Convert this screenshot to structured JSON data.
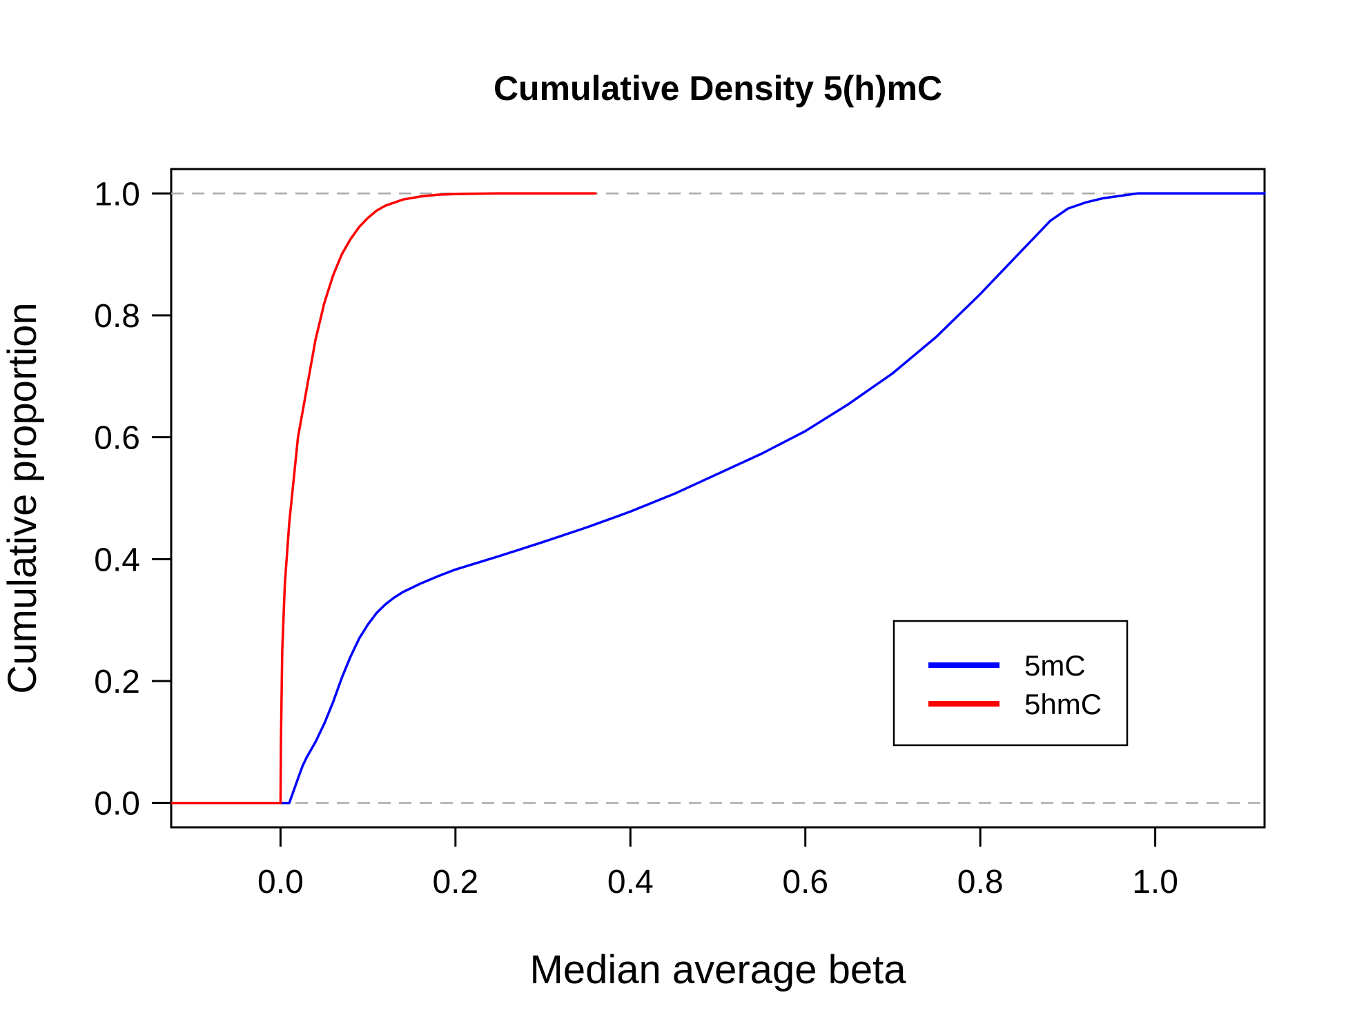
{
  "chart_data": {
    "type": "line",
    "title": "Cumulative Density 5(h)mC",
    "xlabel": "Median average beta",
    "ylabel": "Cumulative proportion",
    "xlim": [
      -0.125,
      1.125
    ],
    "ylim": [
      -0.04,
      1.04
    ],
    "x_ticks": [
      0.0,
      0.2,
      0.4,
      0.6,
      0.8,
      1.0
    ],
    "x_tick_labels": [
      "0.0",
      "0.2",
      "0.4",
      "0.6",
      "0.8",
      "1.0"
    ],
    "y_ticks": [
      0.0,
      0.2,
      0.4,
      0.6,
      0.8,
      1.0
    ],
    "y_tick_labels": [
      "0.0",
      "0.2",
      "0.4",
      "0.6",
      "0.8",
      "1.0"
    ],
    "reference_lines": [
      0.0,
      1.0
    ],
    "reference_line_color": "#aaaaaa",
    "grid": false,
    "legend_position": "bottom-right",
    "series": [
      {
        "name": "5mC",
        "color": "#0000ff",
        "x": [
          -0.125,
          0.0,
          0.01,
          0.015,
          0.02,
          0.025,
          0.03,
          0.04,
          0.05,
          0.06,
          0.07,
          0.08,
          0.09,
          0.1,
          0.11,
          0.12,
          0.13,
          0.14,
          0.15,
          0.16,
          0.18,
          0.2,
          0.25,
          0.3,
          0.35,
          0.4,
          0.45,
          0.5,
          0.55,
          0.6,
          0.65,
          0.7,
          0.75,
          0.8,
          0.82,
          0.84,
          0.86,
          0.87,
          0.88,
          0.9,
          0.92,
          0.94,
          0.96,
          0.98,
          1.0,
          1.125
        ],
        "y": [
          0.0,
          0.0,
          0.0,
          0.02,
          0.04,
          0.06,
          0.075,
          0.1,
          0.13,
          0.165,
          0.205,
          0.24,
          0.27,
          0.293,
          0.312,
          0.326,
          0.337,
          0.346,
          0.353,
          0.36,
          0.372,
          0.383,
          0.405,
          0.428,
          0.452,
          0.478,
          0.507,
          0.54,
          0.573,
          0.61,
          0.655,
          0.705,
          0.765,
          0.835,
          0.865,
          0.895,
          0.925,
          0.94,
          0.955,
          0.975,
          0.985,
          0.992,
          0.996,
          1.0,
          1.0,
          1.0
        ]
      },
      {
        "name": "5hmC",
        "color": "#ff0000",
        "x": [
          -0.125,
          0.0,
          0.0005,
          0.002,
          0.005,
          0.01,
          0.015,
          0.02,
          0.025,
          0.03,
          0.04,
          0.05,
          0.06,
          0.07,
          0.08,
          0.09,
          0.1,
          0.11,
          0.12,
          0.14,
          0.16,
          0.18,
          0.2,
          0.25,
          0.3,
          0.36
        ],
        "y": [
          0.0,
          0.0,
          0.1,
          0.25,
          0.36,
          0.46,
          0.53,
          0.6,
          0.64,
          0.68,
          0.76,
          0.82,
          0.865,
          0.9,
          0.925,
          0.945,
          0.96,
          0.972,
          0.98,
          0.99,
          0.995,
          0.998,
          0.999,
          1.0,
          1.0,
          1.0
        ]
      }
    ]
  }
}
